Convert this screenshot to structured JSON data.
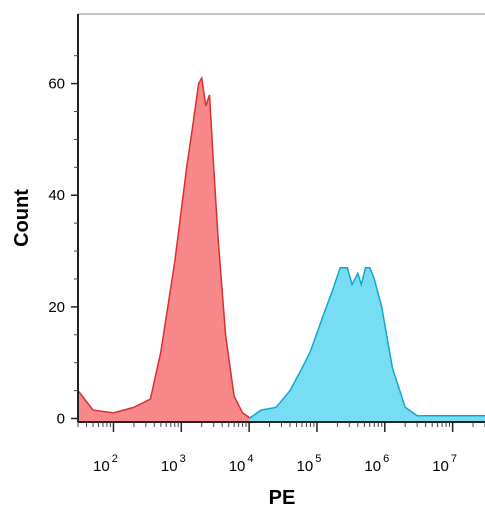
{
  "chart_data": {
    "type": "area",
    "title": "",
    "xlabel": "PE",
    "ylabel": "Count",
    "xscale": "log",
    "xlim": [
      30,
      30000000
    ],
    "ylim": [
      0,
      70
    ],
    "x_ticks": [
      {
        "base": "10",
        "exp": "2",
        "value": 100
      },
      {
        "base": "10",
        "exp": "3",
        "value": 1000
      },
      {
        "base": "10",
        "exp": "4",
        "value": 10000
      },
      {
        "base": "10",
        "exp": "5",
        "value": 100000
      },
      {
        "base": "10",
        "exp": "6",
        "value": 1000000
      },
      {
        "base": "10",
        "exp": "7",
        "value": 10000000
      }
    ],
    "y_ticks": [
      {
        "label": "0",
        "value": 0
      },
      {
        "label": "20",
        "value": 20
      },
      {
        "label": "40",
        "value": 40
      },
      {
        "label": "60",
        "value": 60
      }
    ],
    "grid": false,
    "legend": "none",
    "series": [
      {
        "fill": "#F8888A",
        "stroke": "#D83030",
        "points": [
          [
            30,
            5
          ],
          [
            50,
            1.5
          ],
          [
            100,
            1
          ],
          [
            200,
            2
          ],
          [
            350,
            3.5
          ],
          [
            500,
            12
          ],
          [
            800,
            28
          ],
          [
            1200,
            45
          ],
          [
            1500,
            53
          ],
          [
            1800,
            60
          ],
          [
            2000,
            61
          ],
          [
            2300,
            56
          ],
          [
            2600,
            58
          ],
          [
            3000,
            45
          ],
          [
            3500,
            32
          ],
          [
            4500,
            15
          ],
          [
            6000,
            4
          ],
          [
            8000,
            1
          ],
          [
            10000,
            0.2
          ],
          [
            12000,
            0
          ]
        ]
      },
      {
        "fill": "#77DDF2",
        "stroke": "#12A8CC",
        "points": [
          [
            10000,
            0
          ],
          [
            15000,
            1.5
          ],
          [
            25000,
            2
          ],
          [
            40000,
            5
          ],
          [
            60000,
            9
          ],
          [
            80000,
            12
          ],
          [
            120000,
            18
          ],
          [
            170000,
            23
          ],
          [
            220000,
            27
          ],
          [
            280000,
            27
          ],
          [
            330000,
            24
          ],
          [
            400000,
            26
          ],
          [
            450000,
            24
          ],
          [
            520000,
            27
          ],
          [
            600000,
            27
          ],
          [
            700000,
            25
          ],
          [
            900000,
            20
          ],
          [
            1300000,
            9
          ],
          [
            2000000,
            2
          ],
          [
            3000000,
            0.5
          ],
          [
            30000000,
            0.5
          ]
        ]
      }
    ]
  }
}
